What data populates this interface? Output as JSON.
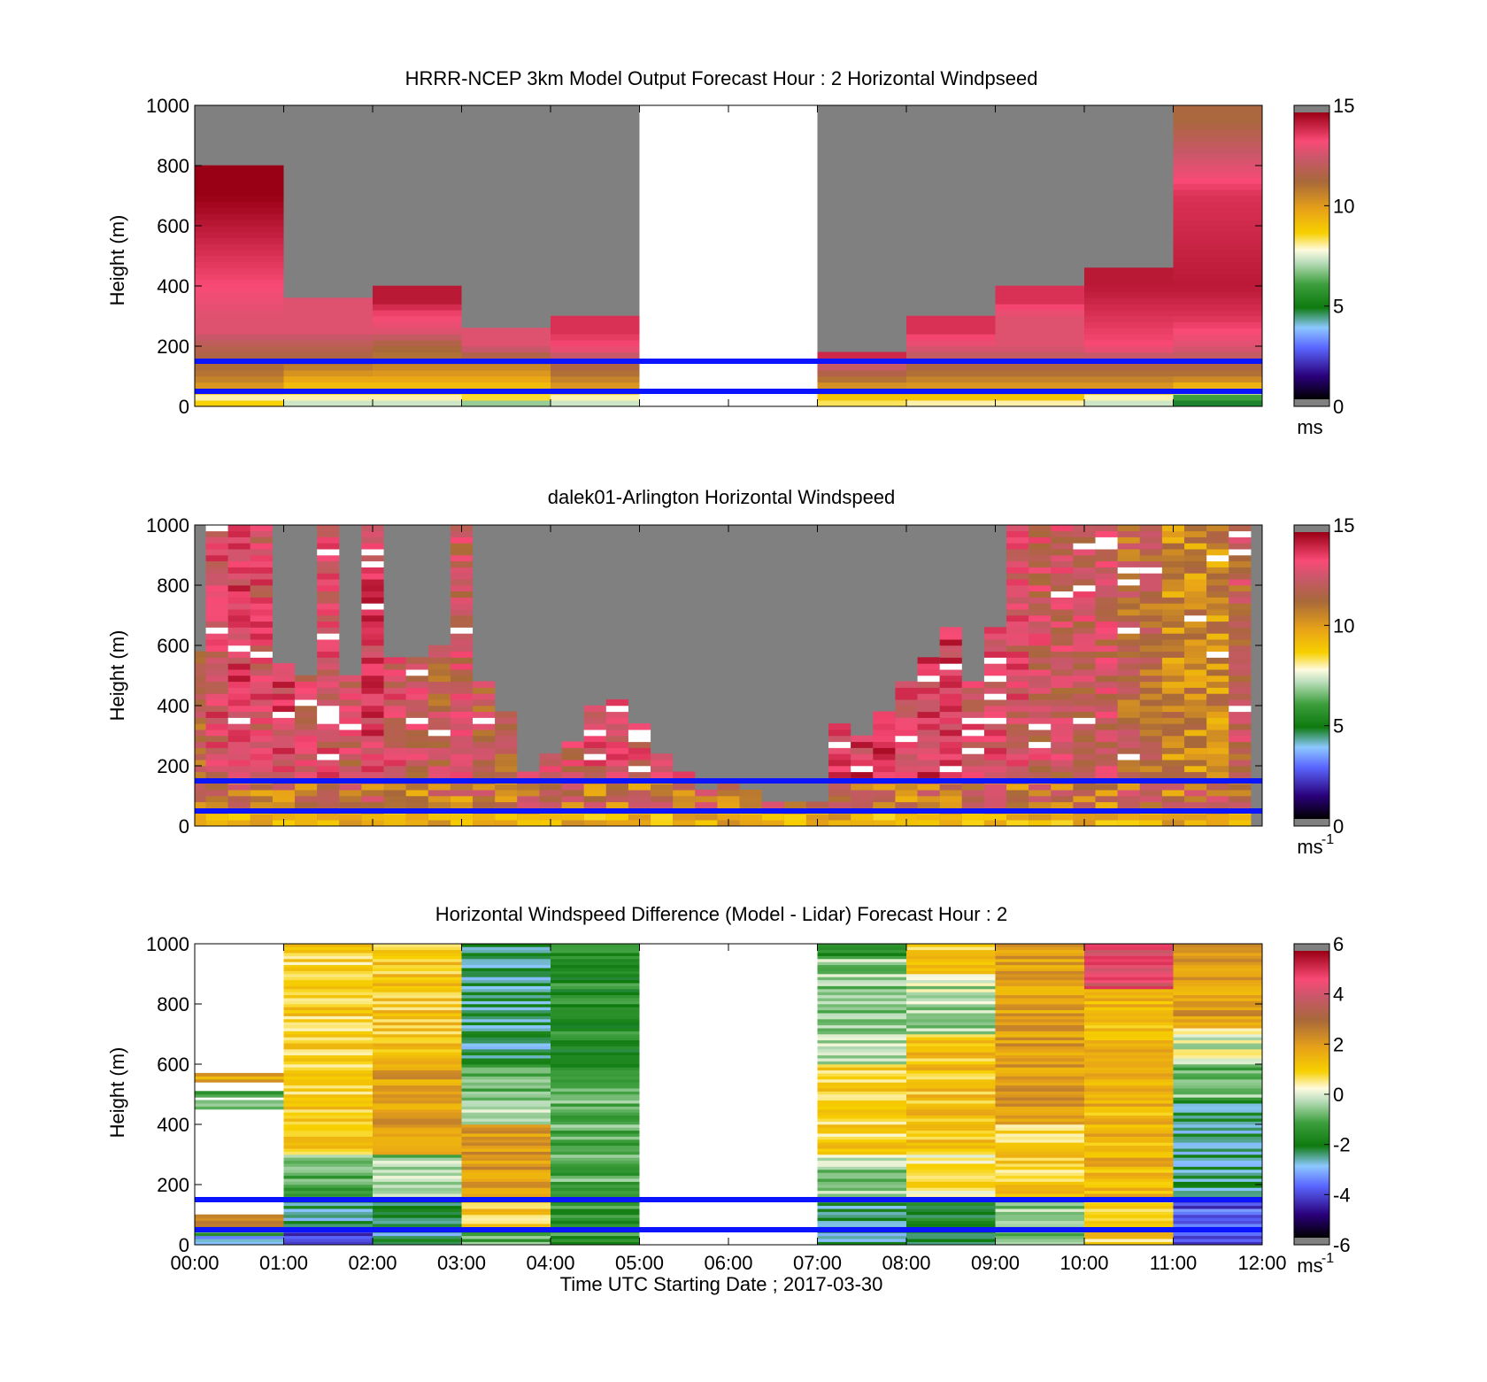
{
  "figure": {
    "xlabel": "Time UTC  Starting Date ; 2017-03-30",
    "x_ticks": [
      "00:00",
      "01:00",
      "02:00",
      "03:00",
      "04:00",
      "05:00",
      "06:00",
      "07:00",
      "08:00",
      "09:00",
      "10:00",
      "11:00",
      "12:00"
    ]
  },
  "chart_data": [
    {
      "type": "heatmap",
      "title": "HRRR-NCEP 3km Model Output   Forecast Hour : 2 Horizontal Windpseed",
      "ylabel": "Height (m)",
      "y_ticks": [
        "0",
        "200",
        "400",
        "600",
        "800",
        "1000"
      ],
      "colorbar": {
        "ticks": [
          "0",
          "5",
          "10",
          "15"
        ],
        "unit": "ms",
        "unit_sup": "",
        "range": [
          0,
          15
        ]
      },
      "xlim_hours": [
        0,
        12
      ],
      "ylim": [
        0,
        1000
      ],
      "highlight_heights_m": [
        150,
        50
      ],
      "highlight_color": "#0a14ff",
      "missing_color": "#808080",
      "columns": [
        {
          "t0": 0,
          "t1": 1,
          "top": 800,
          "profile": [
            [
              0,
              9
            ],
            [
              30,
              8
            ],
            [
              60,
              10
            ],
            [
              100,
              11
            ],
            [
              150,
              11.5
            ],
            [
              200,
              12
            ],
            [
              250,
              13
            ],
            [
              300,
              13
            ],
            [
              400,
              13.5
            ],
            [
              500,
              14
            ],
            [
              600,
              14.5
            ],
            [
              700,
              15
            ]
          ]
        },
        {
          "t0": 1,
          "t1": 2,
          "top": 350,
          "profile": [
            [
              0,
              7
            ],
            [
              30,
              8
            ],
            [
              60,
              9
            ],
            [
              100,
              10
            ],
            [
              150,
              11.5
            ],
            [
              200,
              12
            ],
            [
              250,
              13
            ],
            [
              300,
              13
            ]
          ]
        },
        {
          "t0": 2,
          "t1": 3,
          "top": 400,
          "profile": [
            [
              0,
              7
            ],
            [
              30,
              8
            ],
            [
              60,
              9
            ],
            [
              100,
              10
            ],
            [
              150,
              11
            ],
            [
              200,
              11.5
            ],
            [
              250,
              13
            ],
            [
              300,
              13.5
            ],
            [
              350,
              14.5
            ]
          ]
        },
        {
          "t0": 3,
          "t1": 4,
          "top": 250,
          "profile": [
            [
              0,
              6
            ],
            [
              30,
              8.5
            ],
            [
              60,
              9
            ],
            [
              100,
              10
            ],
            [
              150,
              11
            ],
            [
              200,
              13
            ]
          ]
        },
        {
          "t0": 4,
          "t1": 5,
          "top": 300,
          "profile": [
            [
              0,
              7
            ],
            [
              30,
              8
            ],
            [
              60,
              10
            ],
            [
              100,
              11
            ],
            [
              150,
              12
            ],
            [
              200,
              13.5
            ],
            [
              250,
              14
            ]
          ]
        },
        {
          "t0": 5,
          "t1": 7,
          "blank": true
        },
        {
          "t0": 7,
          "t1": 8,
          "top": 180,
          "profile": [
            [
              0,
              8
            ],
            [
              30,
              9
            ],
            [
              60,
              10
            ],
            [
              100,
              11.5
            ],
            [
              150,
              13
            ],
            [
              175,
              14.5
            ]
          ]
        },
        {
          "t0": 8,
          "t1": 9,
          "top": 300,
          "profile": [
            [
              0,
              7.5
            ],
            [
              30,
              9
            ],
            [
              60,
              10
            ],
            [
              100,
              11
            ],
            [
              150,
              12
            ],
            [
              200,
              13
            ],
            [
              250,
              14
            ]
          ]
        },
        {
          "t0": 9,
          "t1": 10,
          "top": 400,
          "profile": [
            [
              0,
              7.5
            ],
            [
              30,
              9
            ],
            [
              60,
              10
            ],
            [
              100,
              11
            ],
            [
              150,
              12
            ],
            [
              200,
              13
            ],
            [
              300,
              13
            ],
            [
              350,
              14
            ]
          ]
        },
        {
          "t0": 10,
          "t1": 11,
          "top": 450,
          "profile": [
            [
              0,
              7
            ],
            [
              30,
              8
            ],
            [
              60,
              10
            ],
            [
              100,
              11
            ],
            [
              150,
              12
            ],
            [
              200,
              13.5
            ],
            [
              300,
              14
            ],
            [
              400,
              14.5
            ]
          ]
        },
        {
          "t0": 11,
          "t1": 12,
          "top": 1000,
          "profile": [
            [
              0,
              4
            ],
            [
              30,
              6
            ],
            [
              60,
              9
            ],
            [
              100,
              11
            ],
            [
              150,
              12
            ],
            [
              200,
              13
            ],
            [
              300,
              14
            ],
            [
              400,
              14.5
            ],
            [
              700,
              14
            ],
            [
              800,
              13
            ],
            [
              900,
              12
            ],
            [
              950,
              11.5
            ]
          ]
        }
      ]
    },
    {
      "type": "heatmap",
      "title": "dalek01-Arlington  Horizontal Windspeed",
      "ylabel": "Height (m)",
      "y_ticks": [
        "0",
        "200",
        "400",
        "600",
        "800",
        "1000"
      ],
      "colorbar": {
        "ticks": [
          "0",
          "5",
          "10",
          "15"
        ],
        "unit": "ms",
        "unit_sup": "-1",
        "range": [
          0,
          15
        ]
      },
      "xlim_hours": [
        0,
        12
      ],
      "ylim": [
        0,
        1000
      ],
      "highlight_heights_m": [
        150,
        50
      ],
      "highlight_color": "#0a14ff",
      "missing_color": "#808080",
      "lidar_columns": [
        {
          "t0": 0.0,
          "t1": 0.125,
          "top": 580,
          "base": 11.5
        },
        {
          "t0": 0.125,
          "t1": 0.375,
          "top": 1000,
          "base": 13
        },
        {
          "t0": 0.375,
          "t1": 0.625,
          "top": 1000,
          "base": 13.5
        },
        {
          "t0": 0.625,
          "t1": 0.875,
          "top": 990,
          "base": 13
        },
        {
          "t0": 0.875,
          "t1": 1.125,
          "top": 530,
          "base": 13.5
        },
        {
          "t0": 1.125,
          "t1": 1.375,
          "top": 500,
          "base": 12.5
        },
        {
          "t0": 1.375,
          "t1": 1.625,
          "top": 1000,
          "base": 13
        },
        {
          "t0": 1.625,
          "t1": 1.875,
          "top": 500,
          "base": 12.5
        },
        {
          "t0": 1.875,
          "t1": 2.125,
          "top": 1000,
          "base": 13.5
        },
        {
          "t0": 2.125,
          "t1": 2.375,
          "top": 550,
          "base": 13
        },
        {
          "t0": 2.375,
          "t1": 2.625,
          "top": 560,
          "base": 12.5
        },
        {
          "t0": 2.625,
          "t1": 2.875,
          "top": 590,
          "base": 12
        },
        {
          "t0": 2.875,
          "t1": 3.125,
          "top": 1000,
          "base": 12.5
        },
        {
          "t0": 3.125,
          "t1": 3.375,
          "top": 480,
          "base": 12
        },
        {
          "t0": 3.375,
          "t1": 3.625,
          "top": 380,
          "base": 12
        },
        {
          "t0": 3.625,
          "t1": 3.875,
          "top": 180,
          "base": 12.5
        },
        {
          "t0": 3.875,
          "t1": 4.125,
          "top": 230,
          "base": 12.5
        },
        {
          "t0": 4.125,
          "t1": 4.375,
          "top": 280,
          "base": 12.5
        },
        {
          "t0": 4.375,
          "t1": 4.625,
          "top": 390,
          "base": 13
        },
        {
          "t0": 4.625,
          "t1": 4.875,
          "top": 420,
          "base": 13
        },
        {
          "t0": 4.875,
          "t1": 5.125,
          "top": 330,
          "base": 13
        },
        {
          "t0": 5.125,
          "t1": 5.375,
          "top": 240,
          "base": 13.5
        },
        {
          "t0": 5.375,
          "t1": 5.625,
          "top": 180,
          "base": 13
        },
        {
          "t0": 5.625,
          "t1": 5.875,
          "top": 120,
          "base": 13
        },
        {
          "t0": 5.875,
          "t1": 6.125,
          "top": 130,
          "base": 13.5
        },
        {
          "t0": 6.125,
          "t1": 6.375,
          "top": 120,
          "base": 13.5
        },
        {
          "t0": 6.375,
          "t1": 6.625,
          "top": 80,
          "base": 13.5
        },
        {
          "t0": 6.625,
          "t1": 6.875,
          "top": 80,
          "base": 13
        },
        {
          "t0": 6.875,
          "t1": 7.125,
          "top": 80,
          "base": 13
        },
        {
          "t0": 7.125,
          "t1": 7.375,
          "top": 330,
          "base": 13.5
        },
        {
          "t0": 7.375,
          "t1": 7.625,
          "top": 300,
          "base": 13.5
        },
        {
          "t0": 7.625,
          "t1": 7.875,
          "top": 380,
          "base": 13.5
        },
        {
          "t0": 7.875,
          "t1": 8.125,
          "top": 480,
          "base": 13
        },
        {
          "t0": 8.125,
          "t1": 8.375,
          "top": 550,
          "base": 13.5
        },
        {
          "t0": 8.375,
          "t1": 8.625,
          "top": 660,
          "base": 13.5
        },
        {
          "t0": 8.625,
          "t1": 8.875,
          "top": 480,
          "base": 13
        },
        {
          "t0": 8.875,
          "t1": 9.125,
          "top": 660,
          "base": 13
        },
        {
          "t0": 9.125,
          "t1": 9.375,
          "top": 1000,
          "base": 13
        },
        {
          "t0": 9.375,
          "t1": 9.625,
          "top": 1000,
          "base": 12.5
        },
        {
          "t0": 9.625,
          "t1": 9.875,
          "top": 1000,
          "base": 12.5
        },
        {
          "t0": 9.875,
          "t1": 10.125,
          "top": 1000,
          "base": 12.5
        },
        {
          "t0": 10.125,
          "t1": 10.375,
          "top": 1000,
          "base": 12.5
        },
        {
          "t0": 10.375,
          "t1": 10.625,
          "top": 1000,
          "base": 11.5
        },
        {
          "t0": 10.625,
          "t1": 10.875,
          "top": 1000,
          "base": 11.5
        },
        {
          "t0": 10.875,
          "t1": 11.125,
          "top": 1000,
          "base": 10.5
        },
        {
          "t0": 11.125,
          "t1": 11.375,
          "top": 1000,
          "base": 10.5
        },
        {
          "t0": 11.375,
          "t1": 11.625,
          "top": 1000,
          "base": 10.5
        },
        {
          "t0": 11.625,
          "t1": 11.875,
          "top": 1000,
          "base": 12
        }
      ]
    },
    {
      "type": "heatmap",
      "title": "Horizontal Windspeed Difference (Model - Lidar) Forecast Hour : 2",
      "ylabel": "Height (m)",
      "y_ticks": [
        "0",
        "200",
        "400",
        "600",
        "800",
        "1000"
      ],
      "colorbar": {
        "ticks": [
          "-6",
          "-4",
          "-2",
          "0",
          "2",
          "4",
          "6"
        ],
        "unit": "ms",
        "unit_sup": "-1",
        "range": [
          -6,
          6
        ]
      },
      "xlim_hours": [
        0,
        12
      ],
      "ylim": [
        0,
        1000
      ],
      "highlight_heights_m": [
        150,
        50
      ],
      "highlight_color": "#0a14ff",
      "columns": [
        {
          "t0": 0,
          "t1": 1,
          "sparse": true,
          "bands": [
            [
              0,
              30,
              -3
            ],
            [
              30,
              60,
              -1
            ],
            [
              60,
              100,
              2.5
            ],
            [
              450,
              480,
              -0.5
            ],
            [
              490,
              510,
              -1
            ],
            [
              540,
              570,
              2
            ]
          ]
        },
        {
          "t0": 1,
          "t1": 2,
          "bands": [
            [
              0,
              50,
              -4
            ],
            [
              50,
              150,
              -2.5
            ],
            [
              150,
              300,
              -1
            ],
            [
              300,
              1000,
              1
            ]
          ]
        },
        {
          "t0": 2,
          "t1": 3,
          "bands": [
            [
              0,
              50,
              -2.5
            ],
            [
              50,
              150,
              -2.5
            ],
            [
              150,
              300,
              -0.5
            ],
            [
              300,
              600,
              2
            ],
            [
              600,
              1000,
              1.2
            ]
          ]
        },
        {
          "t0": 3,
          "t1": 4,
          "bands": [
            [
              0,
              50,
              -1
            ],
            [
              50,
              150,
              1
            ],
            [
              150,
              400,
              2
            ],
            [
              400,
              480,
              0
            ],
            [
              480,
              600,
              -1
            ],
            [
              600,
              1000,
              -2.5
            ]
          ]
        },
        {
          "t0": 4,
          "t1": 5,
          "bands": [
            [
              0,
              150,
              -1.5
            ],
            [
              150,
              530,
              -1
            ],
            [
              530,
              1000,
              -1.7
            ]
          ]
        },
        {
          "t0": 5,
          "t1": 7,
          "blank": true
        },
        {
          "t0": 7,
          "t1": 8,
          "bands": [
            [
              0,
              150,
              -2.5
            ],
            [
              150,
              300,
              -0.5
            ],
            [
              300,
              600,
              1
            ],
            [
              600,
              950,
              -0.5
            ],
            [
              950,
              1000,
              -1.8
            ]
          ]
        },
        {
          "t0": 8,
          "t1": 9,
          "bands": [
            [
              0,
              150,
              -2
            ],
            [
              150,
              300,
              0.5
            ],
            [
              300,
              700,
              1.2
            ],
            [
              700,
              900,
              -0.3
            ],
            [
              900,
              1000,
              1
            ]
          ]
        },
        {
          "t0": 9,
          "t1": 10,
          "bands": [
            [
              0,
              150,
              -0.5
            ],
            [
              150,
              400,
              1
            ],
            [
              400,
              800,
              2
            ],
            [
              800,
              1000,
              2
            ]
          ]
        },
        {
          "t0": 10,
          "t1": 11,
          "bands": [
            [
              0,
              150,
              1
            ],
            [
              150,
              850,
              1.5
            ],
            [
              850,
              1000,
              4.5
            ]
          ]
        },
        {
          "t0": 11,
          "t1": 12,
          "bands": [
            [
              0,
              60,
              -4
            ],
            [
              60,
              150,
              -4
            ],
            [
              150,
              480,
              -2.5
            ],
            [
              480,
              600,
              -0.8
            ],
            [
              600,
              720,
              0
            ],
            [
              720,
              1000,
              2
            ]
          ]
        }
      ]
    }
  ]
}
